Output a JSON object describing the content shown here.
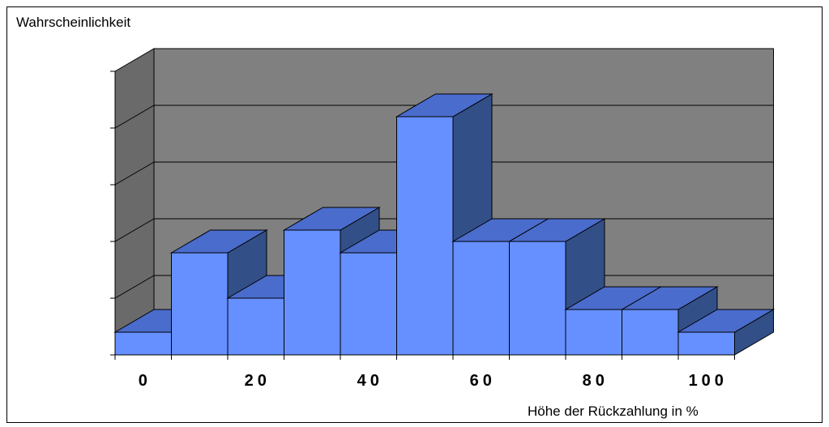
{
  "chart_data": {
    "type": "bar",
    "title": "",
    "ylabel": "Wahrscheinlichkeit",
    "xlabel": "Höhe der Rückzahlung in %",
    "x_tick_labels": [
      "0",
      "20",
      "40",
      "60",
      "80",
      "100"
    ],
    "categories": [
      "0",
      "10",
      "20",
      "30",
      "40",
      "50",
      "60",
      "70",
      "80",
      "90",
      "100"
    ],
    "values": [
      0.4,
      1.8,
      1.0,
      2.2,
      1.8,
      4.2,
      2.0,
      2.0,
      0.8,
      0.8,
      0.4
    ],
    "ylim": [
      0,
      5
    ],
    "grid": true,
    "style": "3d",
    "colors": {
      "bar_front": "#6690FF",
      "bar_top": "#4A6CCC",
      "bar_side": "#334F88",
      "back_wall": "#808080",
      "side_wall": "#6A6A6A",
      "grid": "#000000"
    }
  }
}
